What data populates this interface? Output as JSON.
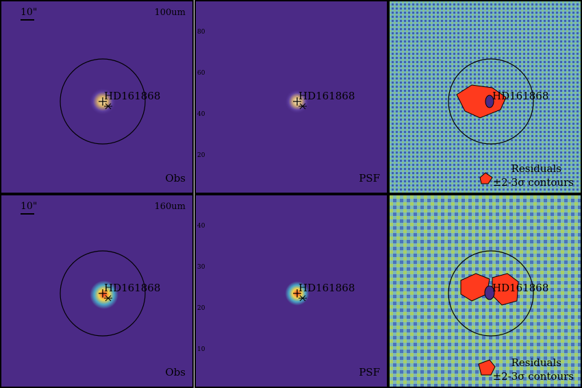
{
  "rows": [
    {
      "band": "100um",
      "scale": "10\"",
      "star": "HD161868",
      "obs_label": "Obs",
      "psf_label": "PSF",
      "residual_label_1": "Residuals",
      "residual_label_2": "±2-3σ contours",
      "psf_ticks": [
        "80",
        "60",
        "40",
        "20"
      ]
    },
    {
      "band": "160um",
      "scale": "10\"",
      "star": "HD161868",
      "obs_label": "Obs",
      "psf_label": "PSF",
      "residual_label_1": "Residuals",
      "residual_label_2": "±2-3σ contours",
      "psf_ticks": [
        "40",
        "30",
        "20",
        "10"
      ]
    }
  ],
  "colors": {
    "background": "#4b2a86",
    "frame": "#b80000",
    "core_hot": "#ff3b1f",
    "core_warm": "#f6d24b",
    "residual_bg": "#6fb0c9",
    "residual_hot": "#ff3a1d"
  }
}
